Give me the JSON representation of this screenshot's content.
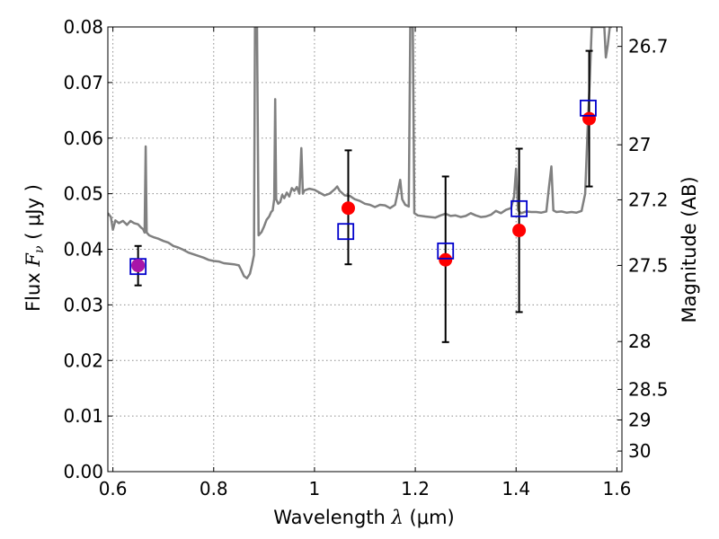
{
  "chart_data": {
    "type": "scatter",
    "xlabel": "Wavelength",
    "xlabel_symbol": "λ",
    "xlabel_unit": "(μm)",
    "ylabel": "Flux",
    "ylabel_symbol_main": "F",
    "ylabel_symbol_sub": "ν",
    "ylabel_unit": "( μJy )",
    "y2label": "Magnitude (AB)",
    "xlim": [
      0.59,
      1.61
    ],
    "ylim": [
      0.0,
      0.08
    ],
    "grid": true,
    "x_ticks": [
      0.6,
      0.8,
      1.0,
      1.2,
      1.4,
      1.6
    ],
    "x_tick_labels": [
      "0.6",
      "0.8",
      "1",
      "1.2",
      "1.4",
      "1.6"
    ],
    "y_ticks": [
      0.0,
      0.01,
      0.02,
      0.03,
      0.04,
      0.05,
      0.06,
      0.07,
      0.08
    ],
    "y_tick_labels": [
      "0.00",
      "0.01",
      "0.02",
      "0.03",
      "0.04",
      "0.05",
      "0.06",
      "0.07",
      "0.08"
    ],
    "y2_ticks": [
      {
        "label": "26.7",
        "flux": 0.0765
      },
      {
        "label": "27",
        "flux": 0.0588
      },
      {
        "label": "27.2",
        "flux": 0.0489
      },
      {
        "label": "27.5",
        "flux": 0.0371
      },
      {
        "label": "28",
        "flux": 0.0234
      },
      {
        "label": "28.5",
        "flux": 0.0148
      },
      {
        "label": "29",
        "flux": 0.0093
      },
      {
        "label": "30",
        "flux": 0.0037
      }
    ],
    "colors": {
      "model": "#808080",
      "observed": "#ff0000",
      "model_photometry": "#0000cc",
      "errorbar": "#000000",
      "grid": "#8c8c8c"
    },
    "model_spectrum": [
      [
        0.59,
        0.0465
      ],
      [
        0.596,
        0.0458
      ],
      [
        0.6,
        0.0435
      ],
      [
        0.605,
        0.0452
      ],
      [
        0.612,
        0.0447
      ],
      [
        0.62,
        0.0451
      ],
      [
        0.628,
        0.0444
      ],
      [
        0.635,
        0.0451
      ],
      [
        0.642,
        0.0447
      ],
      [
        0.65,
        0.0445
      ],
      [
        0.656,
        0.0439
      ],
      [
        0.66,
        0.0436
      ],
      [
        0.663,
        0.043
      ],
      [
        0.665,
        0.0585
      ],
      [
        0.667,
        0.043
      ],
      [
        0.672,
        0.0425
      ],
      [
        0.68,
        0.0422
      ],
      [
        0.69,
        0.0419
      ],
      [
        0.7,
        0.0415
      ],
      [
        0.71,
        0.0412
      ],
      [
        0.72,
        0.0406
      ],
      [
        0.73,
        0.0403
      ],
      [
        0.74,
        0.0399
      ],
      [
        0.75,
        0.0394
      ],
      [
        0.76,
        0.0391
      ],
      [
        0.77,
        0.0388
      ],
      [
        0.78,
        0.0385
      ],
      [
        0.79,
        0.0381
      ],
      [
        0.8,
        0.0379
      ],
      [
        0.81,
        0.0378
      ],
      [
        0.82,
        0.0375
      ],
      [
        0.83,
        0.0374
      ],
      [
        0.84,
        0.0373
      ],
      [
        0.85,
        0.0371
      ],
      [
        0.855,
        0.0362
      ],
      [
        0.86,
        0.0352
      ],
      [
        0.866,
        0.0348
      ],
      [
        0.872,
        0.0356
      ],
      [
        0.876,
        0.0372
      ],
      [
        0.88,
        0.039
      ],
      [
        0.882,
        0.08
      ],
      [
        0.886,
        0.08
      ],
      [
        0.889,
        0.0425
      ],
      [
        0.895,
        0.0431
      ],
      [
        0.9,
        0.0441
      ],
      [
        0.905,
        0.0453
      ],
      [
        0.91,
        0.0459
      ],
      [
        0.914,
        0.0467
      ],
      [
        0.917,
        0.047
      ],
      [
        0.92,
        0.049
      ],
      [
        0.922,
        0.067
      ],
      [
        0.924,
        0.049
      ],
      [
        0.928,
        0.0482
      ],
      [
        0.932,
        0.0485
      ],
      [
        0.936,
        0.0498
      ],
      [
        0.94,
        0.0492
      ],
      [
        0.945,
        0.0502
      ],
      [
        0.95,
        0.0495
      ],
      [
        0.955,
        0.051
      ],
      [
        0.96,
        0.0505
      ],
      [
        0.965,
        0.0512
      ],
      [
        0.97,
        0.05
      ],
      [
        0.974,
        0.0582
      ],
      [
        0.977,
        0.05
      ],
      [
        0.98,
        0.0506
      ],
      [
        0.99,
        0.0509
      ],
      [
        1.0,
        0.0507
      ],
      [
        1.01,
        0.0502
      ],
      [
        1.02,
        0.0497
      ],
      [
        1.03,
        0.05
      ],
      [
        1.04,
        0.0508
      ],
      [
        1.045,
        0.0513
      ],
      [
        1.05,
        0.0505
      ],
      [
        1.06,
        0.0497
      ],
      [
        1.07,
        0.0496
      ],
      [
        1.08,
        0.049
      ],
      [
        1.09,
        0.0487
      ],
      [
        1.1,
        0.0482
      ],
      [
        1.11,
        0.048
      ],
      [
        1.12,
        0.0476
      ],
      [
        1.13,
        0.048
      ],
      [
        1.14,
        0.0479
      ],
      [
        1.15,
        0.0474
      ],
      [
        1.16,
        0.048
      ],
      [
        1.165,
        0.0502
      ],
      [
        1.17,
        0.0525
      ],
      [
        1.174,
        0.049
      ],
      [
        1.18,
        0.048
      ],
      [
        1.187,
        0.0477
      ],
      [
        1.19,
        0.08
      ],
      [
        1.195,
        0.08
      ],
      [
        1.198,
        0.0465
      ],
      [
        1.205,
        0.0461
      ],
      [
        1.22,
        0.0459
      ],
      [
        1.24,
        0.0457
      ],
      [
        1.25,
        0.0461
      ],
      [
        1.26,
        0.0464
      ],
      [
        1.27,
        0.046
      ],
      [
        1.28,
        0.0461
      ],
      [
        1.29,
        0.0458
      ],
      [
        1.3,
        0.046
      ],
      [
        1.31,
        0.0465
      ],
      [
        1.32,
        0.0461
      ],
      [
        1.33,
        0.0458
      ],
      [
        1.34,
        0.0459
      ],
      [
        1.35,
        0.0462
      ],
      [
        1.36,
        0.0469
      ],
      [
        1.37,
        0.0465
      ],
      [
        1.38,
        0.0471
      ],
      [
        1.39,
        0.0474
      ],
      [
        1.396,
        0.0495
      ],
      [
        1.4,
        0.0545
      ],
      [
        1.404,
        0.047
      ],
      [
        1.41,
        0.0465
      ],
      [
        1.42,
        0.0468
      ],
      [
        1.43,
        0.0467
      ],
      [
        1.44,
        0.0467
      ],
      [
        1.45,
        0.0466
      ],
      [
        1.46,
        0.0468
      ],
      [
        1.465,
        0.051
      ],
      [
        1.47,
        0.0549
      ],
      [
        1.474,
        0.047
      ],
      [
        1.48,
        0.0467
      ],
      [
        1.49,
        0.0468
      ],
      [
        1.5,
        0.0466
      ],
      [
        1.51,
        0.0467
      ],
      [
        1.52,
        0.0466
      ],
      [
        1.53,
        0.0469
      ],
      [
        1.537,
        0.05
      ],
      [
        1.542,
        0.062
      ],
      [
        1.546,
        0.07
      ],
      [
        1.55,
        0.08
      ],
      [
        1.555,
        0.08
      ],
      [
        1.575,
        0.08
      ],
      [
        1.578,
        0.0745
      ],
      [
        1.582,
        0.0768
      ],
      [
        1.586,
        0.08
      ],
      [
        1.59,
        0.08
      ]
    ],
    "observed": [
      {
        "x": 0.65,
        "y": 0.0371,
        "err_low": 0.0335,
        "err_high": 0.0406
      },
      {
        "x": 1.067,
        "y": 0.0474,
        "err_low": 0.0373,
        "err_high": 0.0578
      },
      {
        "x": 1.26,
        "y": 0.0381,
        "err_low": 0.0233,
        "err_high": 0.0531
      },
      {
        "x": 1.406,
        "y": 0.0434,
        "err_low": 0.0287,
        "err_high": 0.0581
      },
      {
        "x": 1.545,
        "y": 0.0635,
        "err_low": 0.0513,
        "err_high": 0.0757
      }
    ],
    "model_photometry": [
      {
        "x": 0.65,
        "y": 0.0369
      },
      {
        "x": 1.062,
        "y": 0.0432
      },
      {
        "x": 1.26,
        "y": 0.0397
      },
      {
        "x": 1.406,
        "y": 0.0473
      },
      {
        "x": 1.543,
        "y": 0.0654
      }
    ]
  }
}
